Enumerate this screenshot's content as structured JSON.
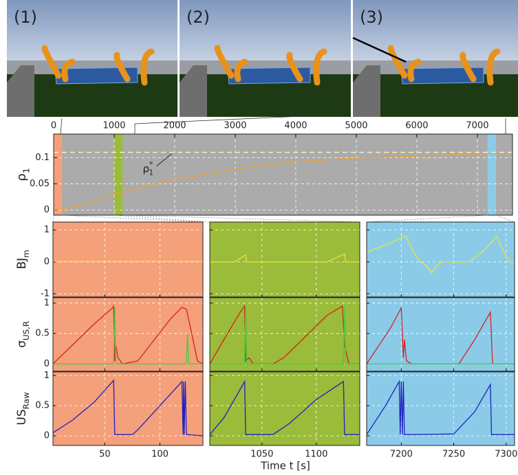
{
  "screenshots": [
    {
      "label": "(1)"
    },
    {
      "label": "(2)"
    },
    {
      "label": "(3)"
    }
  ],
  "chart_data": [
    {
      "type": "line",
      "ylabel": {
        "text": "ρ",
        "sub": "1"
      },
      "xlim": [
        0,
        7580
      ],
      "ylim": [
        -0.01,
        0.145
      ],
      "xticks": [
        0,
        1000,
        2000,
        3000,
        4000,
        5000,
        6000,
        7000
      ],
      "yticks": [
        0,
        0.05,
        0.1
      ],
      "grid": true,
      "background": "#ababab",
      "reference": {
        "value": 0.11,
        "color": "#f6f0c0",
        "label": {
          "text": "ρ",
          "sub": "1",
          "sup": "*"
        }
      },
      "series": [
        {
          "color": "#f0a030",
          "x": [
            0,
            250,
            500,
            750,
            1000,
            1250,
            1500,
            2000,
            2500,
            3000,
            3500,
            4000,
            4500,
            5000,
            5500,
            6000,
            6500,
            7000,
            7580
          ],
          "values": [
            0,
            0.004,
            0.01,
            0.02,
            0.03,
            0.038,
            0.045,
            0.058,
            0.068,
            0.078,
            0.086,
            0.092,
            0.096,
            0.099,
            0.101,
            0.103,
            0.105,
            0.107,
            0.108
          ]
        }
      ]
    },
    {
      "type": "panel-grid",
      "xlabel": "Time t [s]",
      "grid": true,
      "rows": [
        {
          "ylabel": {
            "text": "BJ",
            "sub": "m"
          },
          "ylim": [
            -1.1,
            1.25
          ],
          "yticks": [
            -1,
            0,
            1
          ]
        },
        {
          "ylabel": {
            "text": "σ",
            "sub": "US,R"
          },
          "ylim": [
            -0.12,
            1.09
          ],
          "yticks": [
            0,
            0.5,
            1
          ]
        },
        {
          "ylabel": {
            "text": "US",
            "sub": "Raw"
          },
          "ylim": [
            -0.16,
            1.06
          ],
          "yticks": [
            0,
            0.5,
            1
          ]
        }
      ],
      "columns": [
        {
          "xlim": [
            3,
            139
          ],
          "xticks": [
            50,
            100
          ],
          "color": "#f4a07a",
          "panels": [
            {
              "series": [
                {
                  "color": "#e8e838",
                  "x": [
                    3,
                    60,
                    139
                  ],
                  "values": [
                    0.02,
                    0.02,
                    0.02
                  ]
                }
              ]
            },
            {
              "series": [
                {
                  "color": "#d42020",
                  "x": [
                    3,
                    20,
                    40,
                    57,
                    58,
                    59,
                    60,
                    62,
                    66,
                    80,
                    95,
                    110,
                    120,
                    124,
                    130,
                    134,
                    139
                  ],
                  "values": [
                    0,
                    0.3,
                    0.65,
                    0.92,
                    0.95,
                    0.05,
                    0.3,
                    0.1,
                    0,
                    0.05,
                    0.4,
                    0.75,
                    0.93,
                    0.9,
                    0.4,
                    0.05,
                    0
                  ]
                },
                {
                  "color": "#40d040",
                  "x": [
                    3,
                    58,
                    59,
                    60,
                    124,
                    125,
                    126,
                    139
                  ],
                  "values": [
                    0,
                    0,
                    0.93,
                    0,
                    0,
                    0.5,
                    0,
                    0
                  ]
                }
              ]
            },
            {
              "series": [
                {
                  "color": "#2020c0",
                  "x": [
                    3,
                    20,
                    40,
                    58,
                    59,
                    75,
                    80,
                    100,
                    120,
                    121,
                    121.5,
                    122,
                    123,
                    124,
                    139
                  ],
                  "values": [
                    0.05,
                    0.25,
                    0.55,
                    0.92,
                    0.02,
                    0.02,
                    0.1,
                    0.5,
                    0.9,
                    0.02,
                    0.9,
                    0.02,
                    0.9,
                    0.02,
                    0
                  ]
                }
              ]
            }
          ]
        },
        {
          "xlim": [
            1002,
            1140
          ],
          "xticks": [
            1050,
            1100
          ],
          "color": "#9bbb3a",
          "panels": [
            {
              "series": [
                {
                  "color": "#e8e838",
                  "x": [
                    1002,
                    1025,
                    1035,
                    1036,
                    1110,
                    1126,
                    1127,
                    1140
                  ],
                  "values": [
                    0,
                    0,
                    0.22,
                    0,
                    0,
                    0.25,
                    0,
                    0
                  ]
                }
              ]
            },
            {
              "series": [
                {
                  "color": "#d42020",
                  "x": [
                    1002,
                    1015,
                    1030,
                    1034,
                    1035,
                    1038,
                    1042,
                    1060,
                    1070,
                    1090,
                    1110,
                    1124,
                    1126,
                    1130,
                    1140
                  ],
                  "values": [
                    0,
                    0.4,
                    0.85,
                    0.95,
                    0.05,
                    0.1,
                    0,
                    0,
                    0.1,
                    0.45,
                    0.8,
                    0.95,
                    0.3,
                    0,
                    0
                  ]
                },
                {
                  "color": "#40d040",
                  "x": [
                    1002,
                    1034,
                    1035,
                    1036,
                    1125,
                    1126,
                    1127,
                    1140
                  ],
                  "values": [
                    0,
                    0,
                    0.95,
                    0,
                    0,
                    0.95,
                    0,
                    0
                  ]
                }
              ]
            },
            {
              "series": [
                {
                  "color": "#2020c0",
                  "x": [
                    1002,
                    1015,
                    1034,
                    1035,
                    1060,
                    1075,
                    1100,
                    1125,
                    1126,
                    1140
                  ],
                  "values": [
                    0.02,
                    0.3,
                    0.9,
                    0.02,
                    0.02,
                    0.2,
                    0.6,
                    0.9,
                    0.02,
                    0.02
                  ]
                }
              ]
            }
          ]
        },
        {
          "xlim": [
            7167,
            7308
          ],
          "xticks": [
            7200,
            7250,
            7300
          ],
          "color": "#8ccbe8",
          "panels": [
            {
              "series": [
                {
                  "color": "#e8e838",
                  "x": [
                    7167,
                    7190,
                    7204,
                    7212,
                    7218,
                    7225,
                    7229,
                    7232,
                    7238,
                    7265,
                    7280,
                    7291,
                    7298,
                    7303,
                    7308
                  ],
                  "values": [
                    0.3,
                    0.6,
                    0.82,
                    0.3,
                    0,
                    -0.15,
                    -0.35,
                    -0.2,
                    0,
                    0,
                    0.4,
                    0.8,
                    0.3,
                    0,
                    0
                  ]
                }
              ]
            },
            {
              "series": [
                {
                  "color": "#d42020",
                  "x": [
                    7167,
                    7190,
                    7200,
                    7202,
                    7203,
                    7205,
                    7210,
                    7255,
                    7270,
                    7285,
                    7287,
                    7308
                  ],
                  "values": [
                    0,
                    0.6,
                    0.92,
                    0.1,
                    0.4,
                    0.05,
                    0,
                    0,
                    0.4,
                    0.85,
                    0,
                    0
                  ]
                },
                {
                  "color": "#40d040",
                  "x": [
                    7167,
                    7308
                  ],
                  "values": [
                    0,
                    0
                  ]
                }
              ]
            },
            {
              "series": [
                {
                  "color": "#2020c0",
                  "x": [
                    7167,
                    7185,
                    7198,
                    7199,
                    7200,
                    7201,
                    7202,
                    7203,
                    7250,
                    7270,
                    7285,
                    7286,
                    7308
                  ],
                  "values": [
                    0.02,
                    0.5,
                    0.9,
                    0.02,
                    0.9,
                    0.02,
                    0.9,
                    0.02,
                    0.03,
                    0.4,
                    0.85,
                    0.02,
                    0.02
                  ]
                }
              ]
            }
          ]
        }
      ]
    }
  ]
}
